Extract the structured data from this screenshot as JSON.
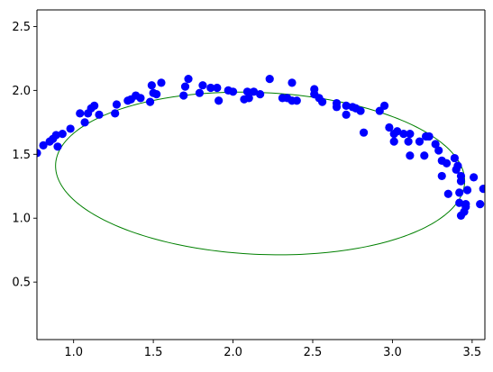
{
  "chart_data": {
    "type": "scatter",
    "title": "",
    "xlabel": "",
    "ylabel": "",
    "xlim": [
      0.77,
      3.58
    ],
    "ylim": [
      0.05,
      2.63
    ],
    "grid": false,
    "x_ticks": [
      "1.0",
      "1.5",
      "2.0",
      "2.5",
      "3.0",
      "3.5"
    ],
    "y_ticks": [
      "0.5",
      "1.0",
      "1.5",
      "2.0",
      "2.5"
    ],
    "x_tick_values": [
      1.0,
      1.5,
      2.0,
      2.5,
      3.0,
      3.5
    ],
    "y_tick_values": [
      0.5,
      1.0,
      1.5,
      2.0,
      2.5
    ],
    "points_color": "#0000ff",
    "ellipse_color": "#008000",
    "points": [
      [
        0.77,
        1.51
      ],
      [
        0.81,
        1.57
      ],
      [
        0.85,
        1.6
      ],
      [
        0.87,
        1.62
      ],
      [
        0.89,
        1.65
      ],
      [
        0.9,
        1.56
      ],
      [
        0.93,
        1.66
      ],
      [
        0.98,
        1.7
      ],
      [
        1.04,
        1.82
      ],
      [
        1.07,
        1.75
      ],
      [
        1.09,
        1.82
      ],
      [
        1.11,
        1.86
      ],
      [
        1.13,
        1.88
      ],
      [
        1.16,
        1.81
      ],
      [
        1.26,
        1.82
      ],
      [
        1.27,
        1.89
      ],
      [
        1.34,
        1.92
      ],
      [
        1.36,
        1.93
      ],
      [
        1.39,
        1.96
      ],
      [
        1.42,
        1.94
      ],
      [
        1.48,
        1.91
      ],
      [
        1.49,
        2.04
      ],
      [
        1.5,
        1.98
      ],
      [
        1.52,
        1.97
      ],
      [
        1.55,
        2.06
      ],
      [
        1.69,
        1.96
      ],
      [
        1.7,
        2.03
      ],
      [
        1.72,
        2.09
      ],
      [
        1.79,
        1.98
      ],
      [
        1.81,
        2.04
      ],
      [
        1.86,
        2.02
      ],
      [
        1.9,
        2.02
      ],
      [
        1.91,
        1.92
      ],
      [
        1.97,
        2.0
      ],
      [
        2.0,
        1.99
      ],
      [
        2.07,
        1.93
      ],
      [
        2.09,
        1.99
      ],
      [
        2.1,
        1.94
      ],
      [
        2.13,
        1.99
      ],
      [
        2.17,
        1.97
      ],
      [
        2.23,
        2.09
      ],
      [
        2.31,
        1.94
      ],
      [
        2.34,
        1.94
      ],
      [
        2.37,
        2.06
      ],
      [
        2.37,
        1.92
      ],
      [
        2.4,
        1.92
      ],
      [
        2.51,
        2.01
      ],
      [
        2.51,
        1.97
      ],
      [
        2.54,
        1.94
      ],
      [
        2.56,
        1.91
      ],
      [
        2.65,
        1.9
      ],
      [
        2.65,
        1.87
      ],
      [
        2.71,
        1.88
      ],
      [
        2.71,
        1.81
      ],
      [
        2.75,
        1.87
      ],
      [
        2.77,
        1.86
      ],
      [
        2.8,
        1.84
      ],
      [
        2.82,
        1.67
      ],
      [
        2.92,
        1.84
      ],
      [
        2.95,
        1.88
      ],
      [
        2.98,
        1.71
      ],
      [
        3.01,
        1.6
      ],
      [
        3.01,
        1.66
      ],
      [
        3.03,
        1.68
      ],
      [
        3.07,
        1.66
      ],
      [
        3.1,
        1.6
      ],
      [
        3.11,
        1.49
      ],
      [
        3.11,
        1.66
      ],
      [
        3.17,
        1.6
      ],
      [
        3.2,
        1.49
      ],
      [
        3.21,
        1.64
      ],
      [
        3.23,
        1.64
      ],
      [
        3.27,
        1.58
      ],
      [
        3.29,
        1.53
      ],
      [
        3.31,
        1.45
      ],
      [
        3.31,
        1.33
      ],
      [
        3.34,
        1.43
      ],
      [
        3.35,
        1.19
      ],
      [
        3.39,
        1.47
      ],
      [
        3.4,
        1.38
      ],
      [
        3.41,
        1.41
      ],
      [
        3.42,
        1.2
      ],
      [
        3.42,
        1.12
      ],
      [
        3.43,
        1.33
      ],
      [
        3.43,
        1.29
      ],
      [
        3.43,
        1.02
      ],
      [
        3.45,
        1.05
      ],
      [
        3.46,
        1.09
      ],
      [
        3.46,
        1.11
      ],
      [
        3.47,
        1.22
      ],
      [
        3.51,
        1.32
      ],
      [
        3.55,
        1.11
      ],
      [
        3.57,
        1.23
      ]
    ],
    "ellipse": {
      "center": [
        2.17,
        1.35
      ],
      "semi_major": 1.285,
      "semi_minor": 0.633,
      "rotation_deg": -3.5
    }
  }
}
